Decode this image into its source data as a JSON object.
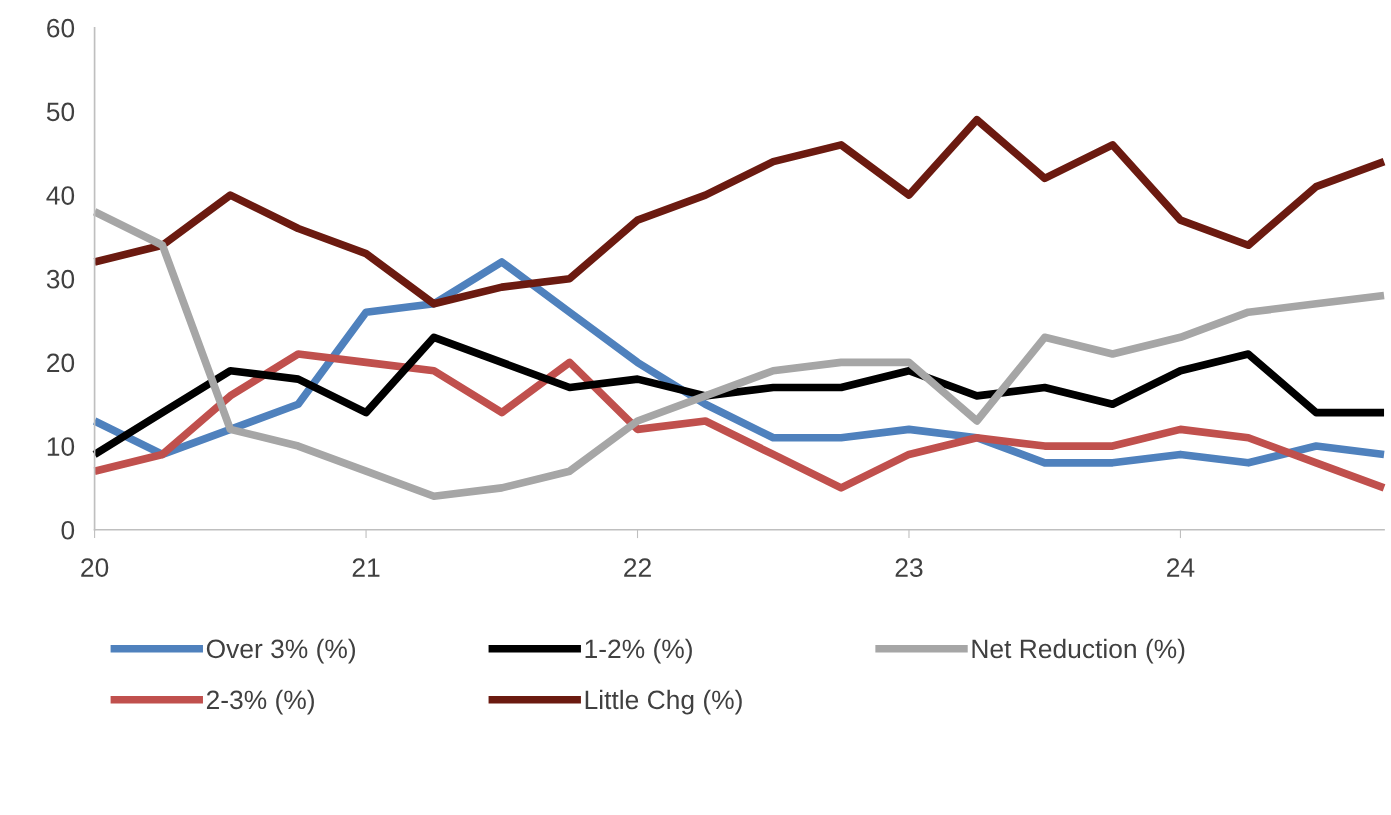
{
  "chart_data": {
    "type": "line",
    "x": [
      20,
      20.25,
      20.5,
      20.75,
      21,
      21.25,
      21.5,
      21.75,
      22,
      22.25,
      22.5,
      22.75,
      23,
      23.25,
      23.5,
      23.75,
      24,
      24.25,
      24.5,
      24.75
    ],
    "xlim": [
      20,
      24.75
    ],
    "xticks": [
      20,
      21,
      22,
      23,
      24
    ],
    "ylim": [
      0,
      60
    ],
    "yticks": [
      0,
      10,
      20,
      30,
      40,
      50,
      60
    ],
    "grid": false,
    "legend": "bottom",
    "marker": "none",
    "line_style": "solid",
    "series": [
      {
        "name": "Over 3% (%)",
        "color": "#4f81bd",
        "values": [
          13,
          9,
          12,
          15,
          26,
          27,
          32,
          26,
          20,
          15,
          11,
          11,
          12,
          11,
          8,
          8,
          9,
          8,
          10,
          9
        ]
      },
      {
        "name": "2-3% (%)",
        "color": "#c0504d",
        "values": [
          7,
          9,
          16,
          21,
          20,
          19,
          14,
          20,
          12,
          13,
          9,
          5,
          9,
          11,
          10,
          10,
          12,
          11,
          8,
          5
        ]
      },
      {
        "name": "1-2% (%)",
        "color": "#000000",
        "values": [
          9,
          14,
          19,
          18,
          14,
          23,
          20,
          17,
          18,
          16,
          17,
          17,
          19,
          16,
          17,
          15,
          19,
          21,
          14,
          14
        ]
      },
      {
        "name": "Little Chg (%)",
        "color": "#6b1a10",
        "values": [
          32,
          34,
          40,
          36,
          33,
          27,
          29,
          30,
          37,
          40,
          44,
          46,
          40,
          49,
          42,
          46,
          37,
          34,
          41,
          44
        ]
      },
      {
        "name": "Net Reduction (%)",
        "color": "#a6a6a6",
        "values": [
          38,
          34,
          12,
          10,
          7,
          4,
          5,
          7,
          13,
          16,
          19,
          20,
          20,
          13,
          23,
          21,
          23,
          26,
          27,
          28
        ]
      }
    ]
  }
}
